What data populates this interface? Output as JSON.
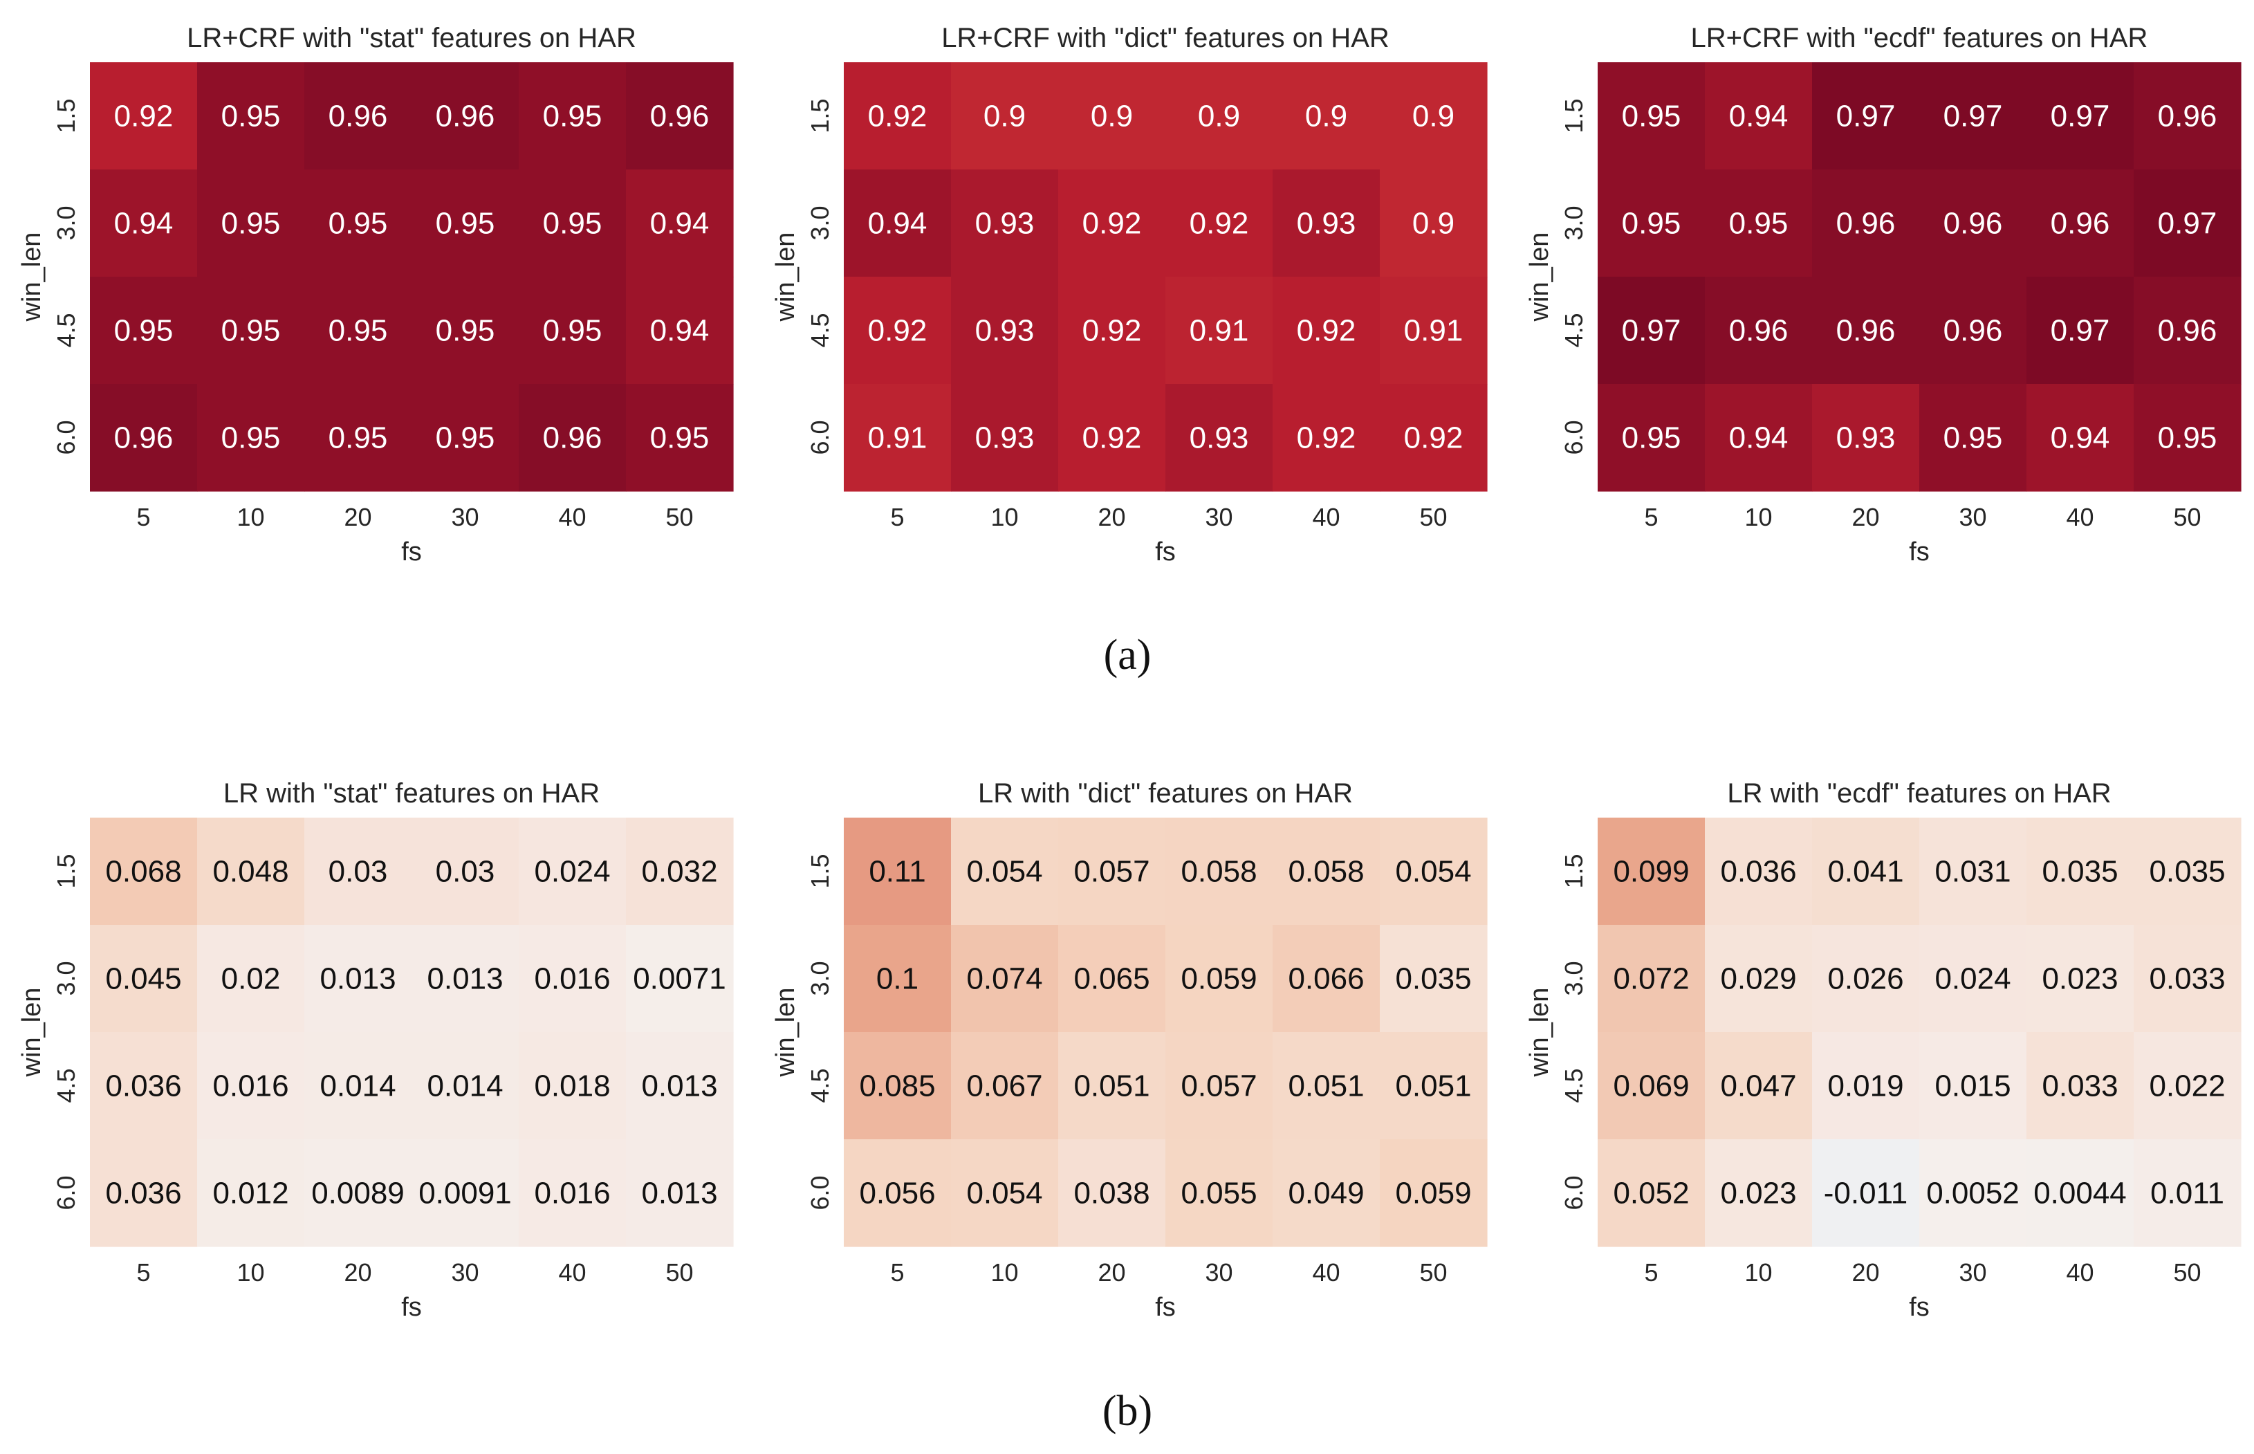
{
  "figure_captions": [
    "(a)",
    "(b)"
  ],
  "colors": {
    "high_dark": "#7d0a25",
    "mid_red": "#c42c34",
    "light": "#f8e9e2",
    "near_zero": "#f4f1ef",
    "negative": "#eaf0f4",
    "text_on_dark": "#ffffff",
    "text_on_light": "#111111"
  },
  "chart_data": [
    {
      "type": "heatmap",
      "title": "LR+CRF with \"stat\" features on HAR",
      "xlabel": "fs",
      "ylabel": "win_len",
      "x_categories": [
        "5",
        "10",
        "20",
        "30",
        "40",
        "50"
      ],
      "y_categories": [
        "1.5",
        "3.0",
        "4.5",
        "6.0"
      ],
      "values": [
        [
          0.92,
          0.95,
          0.96,
          0.96,
          0.95,
          0.96
        ],
        [
          0.94,
          0.95,
          0.95,
          0.95,
          0.95,
          0.94
        ],
        [
          0.95,
          0.95,
          0.95,
          0.95,
          0.95,
          0.94
        ],
        [
          0.96,
          0.95,
          0.95,
          0.95,
          0.96,
          0.95
        ]
      ],
      "labels": [
        [
          "0.92",
          "0.95",
          "0.96",
          "0.96",
          "0.95",
          "0.96"
        ],
        [
          "0.94",
          "0.95",
          "0.95",
          "0.95",
          "0.95",
          "0.94"
        ],
        [
          "0.95",
          "0.95",
          "0.95",
          "0.95",
          "0.95",
          "0.94"
        ],
        [
          "0.96",
          "0.95",
          "0.95",
          "0.95",
          "0.96",
          "0.95"
        ]
      ]
    },
    {
      "type": "heatmap",
      "title": "LR+CRF with \"dict\" features on HAR",
      "xlabel": "fs",
      "ylabel": "win_len",
      "x_categories": [
        "5",
        "10",
        "20",
        "30",
        "40",
        "50"
      ],
      "y_categories": [
        "1.5",
        "3.0",
        "4.5",
        "6.0"
      ],
      "values": [
        [
          0.92,
          0.9,
          0.9,
          0.9,
          0.9,
          0.9
        ],
        [
          0.94,
          0.93,
          0.92,
          0.92,
          0.93,
          0.9
        ],
        [
          0.92,
          0.93,
          0.92,
          0.91,
          0.92,
          0.91
        ],
        [
          0.91,
          0.93,
          0.92,
          0.93,
          0.92,
          0.92
        ]
      ],
      "labels": [
        [
          "0.92",
          "0.9",
          "0.9",
          "0.9",
          "0.9",
          "0.9"
        ],
        [
          "0.94",
          "0.93",
          "0.92",
          "0.92",
          "0.93",
          "0.9"
        ],
        [
          "0.92",
          "0.93",
          "0.92",
          "0.91",
          "0.92",
          "0.91"
        ],
        [
          "0.91",
          "0.93",
          "0.92",
          "0.93",
          "0.92",
          "0.92"
        ]
      ]
    },
    {
      "type": "heatmap",
      "title": "LR+CRF with \"ecdf\" features on HAR",
      "xlabel": "fs",
      "ylabel": "win_len",
      "x_categories": [
        "5",
        "10",
        "20",
        "30",
        "40",
        "50"
      ],
      "y_categories": [
        "1.5",
        "3.0",
        "4.5",
        "6.0"
      ],
      "values": [
        [
          0.95,
          0.94,
          0.97,
          0.97,
          0.97,
          0.96
        ],
        [
          0.95,
          0.95,
          0.96,
          0.96,
          0.96,
          0.97
        ],
        [
          0.97,
          0.96,
          0.96,
          0.96,
          0.97,
          0.96
        ],
        [
          0.95,
          0.94,
          0.93,
          0.95,
          0.94,
          0.95
        ]
      ],
      "labels": [
        [
          "0.95",
          "0.94",
          "0.97",
          "0.97",
          "0.97",
          "0.96"
        ],
        [
          "0.95",
          "0.95",
          "0.96",
          "0.96",
          "0.96",
          "0.97"
        ],
        [
          "0.97",
          "0.96",
          "0.96",
          "0.96",
          "0.97",
          "0.96"
        ],
        [
          "0.95",
          "0.94",
          "0.93",
          "0.95",
          "0.94",
          "0.95"
        ]
      ]
    },
    {
      "type": "heatmap",
      "title": "LR with \"stat\" features on HAR",
      "xlabel": "fs",
      "ylabel": "win_len",
      "x_categories": [
        "5",
        "10",
        "20",
        "30",
        "40",
        "50"
      ],
      "y_categories": [
        "1.5",
        "3.0",
        "4.5",
        "6.0"
      ],
      "values": [
        [
          0.068,
          0.048,
          0.03,
          0.03,
          0.024,
          0.032
        ],
        [
          0.045,
          0.02,
          0.013,
          0.013,
          0.016,
          0.0071
        ],
        [
          0.036,
          0.016,
          0.014,
          0.014,
          0.018,
          0.013
        ],
        [
          0.036,
          0.012,
          0.0089,
          0.0091,
          0.016,
          0.013
        ]
      ],
      "labels": [
        [
          "0.068",
          "0.048",
          "0.03",
          "0.03",
          "0.024",
          "0.032"
        ],
        [
          "0.045",
          "0.02",
          "0.013",
          "0.013",
          "0.016",
          "0.0071"
        ],
        [
          "0.036",
          "0.016",
          "0.014",
          "0.014",
          "0.018",
          "0.013"
        ],
        [
          "0.036",
          "0.012",
          "0.0089",
          "0.0091",
          "0.016",
          "0.013"
        ]
      ]
    },
    {
      "type": "heatmap",
      "title": "LR with \"dict\" features on HAR",
      "xlabel": "fs",
      "ylabel": "win_len",
      "x_categories": [
        "5",
        "10",
        "20",
        "30",
        "40",
        "50"
      ],
      "y_categories": [
        "1.5",
        "3.0",
        "4.5",
        "6.0"
      ],
      "values": [
        [
          0.11,
          0.054,
          0.057,
          0.058,
          0.058,
          0.054
        ],
        [
          0.1,
          0.074,
          0.065,
          0.059,
          0.066,
          0.035
        ],
        [
          0.085,
          0.067,
          0.051,
          0.057,
          0.051,
          0.051
        ],
        [
          0.056,
          0.054,
          0.038,
          0.055,
          0.049,
          0.059
        ]
      ],
      "labels": [
        [
          "0.11",
          "0.054",
          "0.057",
          "0.058",
          "0.058",
          "0.054"
        ],
        [
          "0.1",
          "0.074",
          "0.065",
          "0.059",
          "0.066",
          "0.035"
        ],
        [
          "0.085",
          "0.067",
          "0.051",
          "0.057",
          "0.051",
          "0.051"
        ],
        [
          "0.056",
          "0.054",
          "0.038",
          "0.055",
          "0.049",
          "0.059"
        ]
      ]
    },
    {
      "type": "heatmap",
      "title": "LR with \"ecdf\" features on HAR",
      "xlabel": "fs",
      "ylabel": "win_len",
      "x_categories": [
        "5",
        "10",
        "20",
        "30",
        "40",
        "50"
      ],
      "y_categories": [
        "1.5",
        "3.0",
        "4.5",
        "6.0"
      ],
      "values": [
        [
          0.099,
          0.036,
          0.041,
          0.031,
          0.035,
          0.035
        ],
        [
          0.072,
          0.029,
          0.026,
          0.024,
          0.023,
          0.033
        ],
        [
          0.069,
          0.047,
          0.019,
          0.015,
          0.033,
          0.022
        ],
        [
          0.052,
          0.023,
          -0.011,
          0.0052,
          0.0044,
          0.011
        ]
      ],
      "labels": [
        [
          "0.099",
          "0.036",
          "0.041",
          "0.031",
          "0.035",
          "0.035"
        ],
        [
          "0.072",
          "0.029",
          "0.026",
          "0.024",
          "0.023",
          "0.033"
        ],
        [
          "0.069",
          "0.047",
          "0.019",
          "0.015",
          "0.033",
          "0.022"
        ],
        [
          "0.052",
          "0.023",
          "-0.011",
          "0.0052",
          "0.0044",
          "0.011"
        ]
      ]
    }
  ]
}
